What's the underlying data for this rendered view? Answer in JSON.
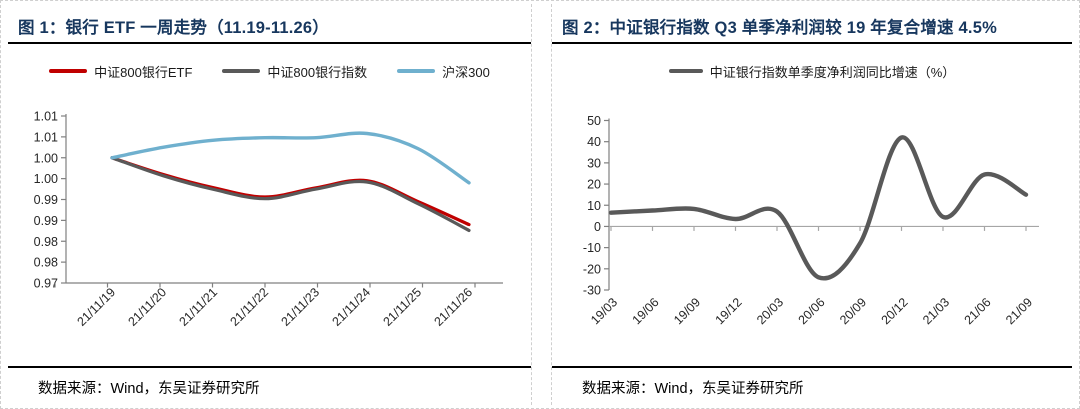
{
  "source_note": "数据来源：Wind，东吴证券研究所",
  "colors": {
    "title_navy": "#17375E",
    "axis_gray": "#808080",
    "zero_line_gray": "#a6a6a6",
    "etf_red": "#C00000",
    "index_gray": "#595959",
    "hs300_blue": "#6FB0CE"
  },
  "chart_data": [
    {
      "type": "line",
      "title": "图 1：银行 ETF 一周走势（11.19-11.26）",
      "categories": [
        "21/11/19",
        "21/11/20",
        "21/11/21",
        "21/11/22",
        "21/11/23",
        "21/11/24",
        "21/11/25",
        "21/11/26"
      ],
      "series": [
        {
          "name": "中证800银行ETF",
          "color": "#C00000",
          "values": [
            1.0,
            0.996,
            0.9928,
            0.9906,
            0.9928,
            0.9945,
            0.9895,
            0.984
          ]
        },
        {
          "name": "中证800银行指数",
          "color": "#595959",
          "values": [
            1.0,
            0.9957,
            0.9924,
            0.9902,
            0.9925,
            0.9942,
            0.989,
            0.9826
          ]
        },
        {
          "name": "沪深300",
          "color": "#6FB0CE",
          "values": [
            1.0,
            1.0025,
            1.0042,
            1.0048,
            1.0048,
            1.0058,
            1.0022,
            0.994
          ]
        }
      ],
      "ylim": [
        0.97,
        1.01
      ],
      "y_ticks": [
        "1.01",
        "1.01",
        "1.00",
        "1.00",
        "0.99",
        "0.99",
        "0.98",
        "0.98",
        "0.97"
      ],
      "grid": false,
      "legend_position": "top",
      "source": "数据来源：Wind，东吴证券研究所"
    },
    {
      "type": "line",
      "title": "图 2：中证银行指数 Q3 单季净利润较 19 年复合增速 4.5%",
      "categories": [
        "19/03",
        "19/06",
        "19/09",
        "19/12",
        "20/03",
        "20/06",
        "20/09",
        "20/12",
        "21/03",
        "21/06",
        "21/09"
      ],
      "series": [
        {
          "name": "中证银行指数单季度净利润同比增速（%）",
          "color": "#595959",
          "values": [
            6.5,
            7.5,
            8.3,
            3.5,
            7.0,
            -24.0,
            -8.0,
            42.0,
            4.5,
            24.5,
            15.0
          ]
        }
      ],
      "ylim": [
        -30,
        50
      ],
      "y_ticks": [
        "50",
        "40",
        "30",
        "20",
        "10",
        "0",
        "-10",
        "-20",
        "-30"
      ],
      "grid": false,
      "zero_line": true,
      "legend_position": "top",
      "source": "数据来源：Wind，东吴证券研究所"
    }
  ]
}
